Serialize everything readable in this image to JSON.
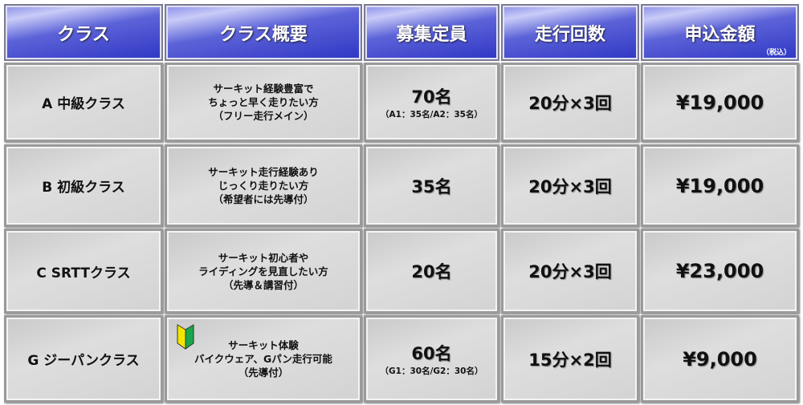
{
  "headers": [
    "クラス",
    "クラス概要",
    "募集定員",
    "走行回数",
    "申込金額"
  ],
  "tax_note": "（税込）",
  "rows": [
    {
      "name": "A 中級クラス",
      "desc": [
        "サーキット経験豊富で",
        "ちょっと早く走りたい方",
        "（フリー走行メイン）"
      ],
      "capacity": "70名",
      "capacity_detail": "（A1：35名/A2：35名）",
      "runs": "20分×3回",
      "price": "¥19,000"
    },
    {
      "name": "B 初級クラス",
      "desc": [
        "サーキット走行経験あり",
        "じっくり走りたい方",
        "（希望者には先導付）"
      ],
      "capacity": "35名",
      "capacity_detail": "",
      "runs": "20分×3回",
      "price": "¥19,000"
    },
    {
      "name": "C SRTTクラス",
      "desc": [
        "サーキット初心者や",
        "ライディングを見直したい方",
        "（先導＆講習付）"
      ],
      "capacity": "20名",
      "capacity_detail": "",
      "runs": "20分×3回",
      "price": "¥23,000"
    },
    {
      "name": "G ジーパンクラス",
      "desc": [
        "サーキット体験",
        "バイクウェア、Gパン走行可能",
        "（先導付）"
      ],
      "capacity": "60名",
      "capacity_detail": "（G1：30名/G2：30名）",
      "runs": "15分×2回",
      "price": "¥9,000",
      "icon": "beginner-mark-icon"
    }
  ]
}
